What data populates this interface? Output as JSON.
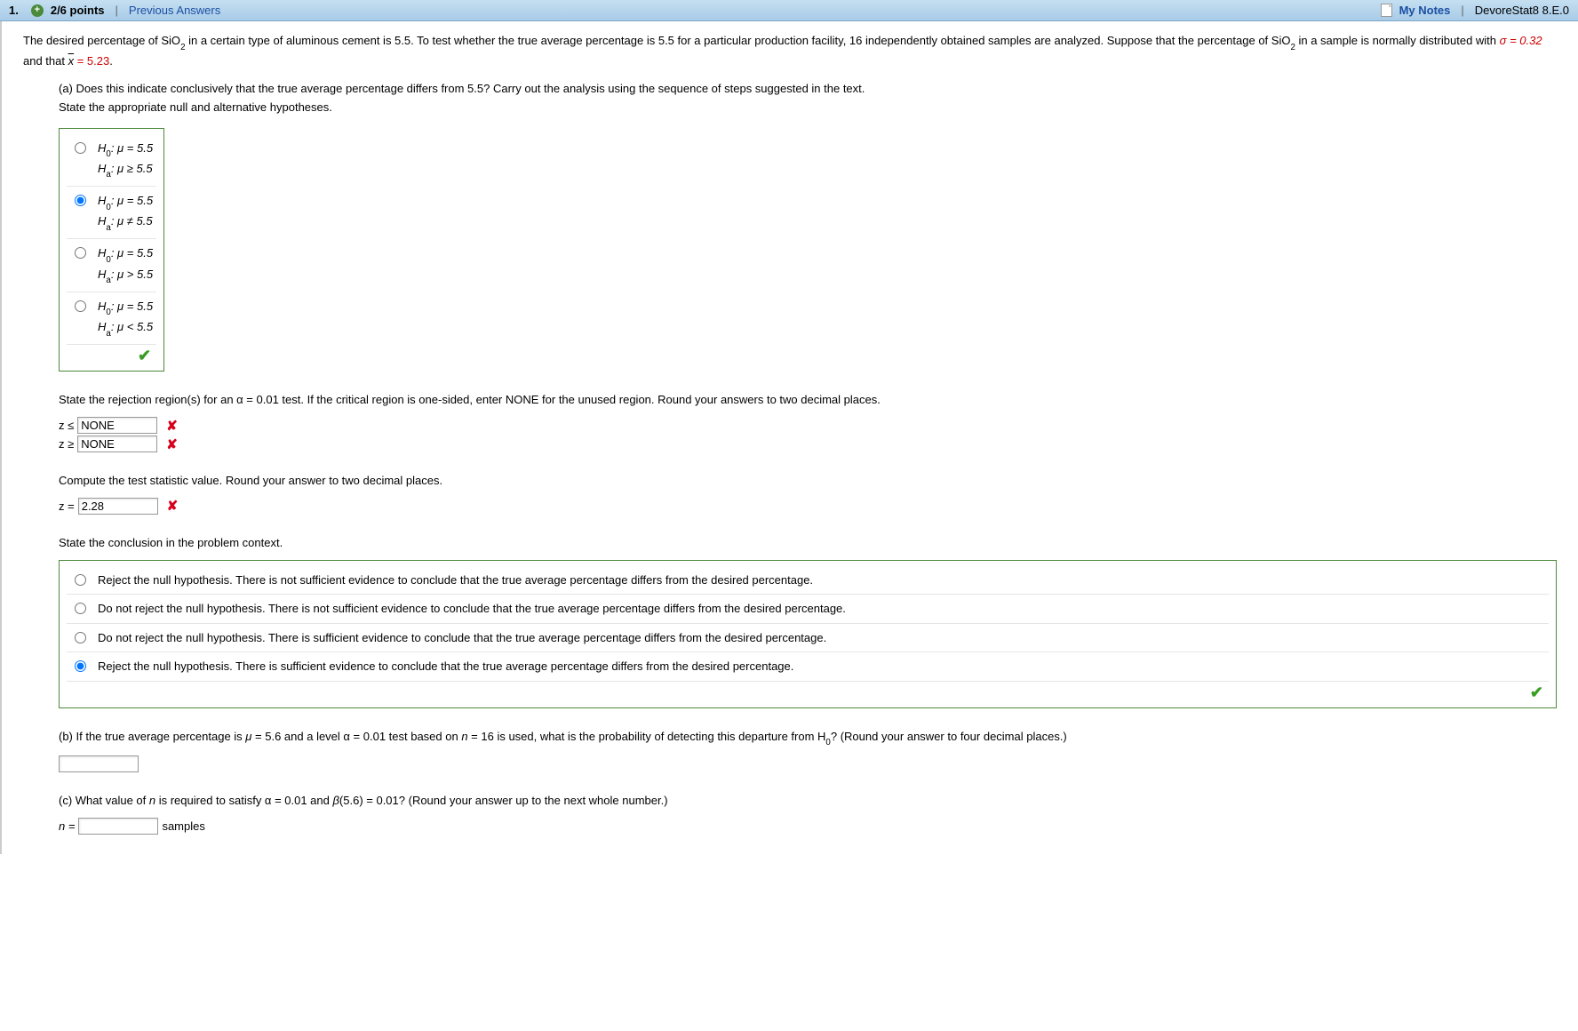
{
  "header": {
    "number": "1.",
    "points": "2/6 points",
    "prev_link": "Previous Answers",
    "mynotes": "My Notes",
    "ref": "DevoreStat8 8.E.0"
  },
  "problem": {
    "intro_1": "The desired percentage of SiO",
    "intro_2": " in a certain type of aluminous cement is 5.5. To test whether the true average percentage is 5.5 for a particular production facility, 16 independently obtained samples are analyzed. Suppose that the percentage of SiO",
    "intro_3": " in a sample is normally distributed with ",
    "sigma_eq": "σ = 0.32",
    "and_that": " and that ",
    "xbar_eq": " = 5.23",
    "period": ".",
    "sub2": "2",
    "xbar": "x"
  },
  "part_a": {
    "q": "(a) Does this indicate conclusively that the true average percentage differs from 5.5? Carry out the analysis using the sequence of steps suggested in the text.",
    "state": "State the appropriate null and alternative hypotheses.",
    "opts": [
      {
        "h0": "H",
        "h0sub": "0",
        "h0rest": ": μ = 5.5",
        "ha": "H",
        "hasub": "a",
        "harest": ": μ ≥ 5.5"
      },
      {
        "h0": "H",
        "h0sub": "0",
        "h0rest": ": μ = 5.5",
        "ha": "H",
        "hasub": "a",
        "harest": ": μ ≠ 5.5"
      },
      {
        "h0": "H",
        "h0sub": "0",
        "h0rest": ": μ = 5.5",
        "ha": "H",
        "hasub": "a",
        "harest": ": μ > 5.5"
      },
      {
        "h0": "H",
        "h0sub": "0",
        "h0rest": ": μ = 5.5",
        "ha": "H",
        "hasub": "a",
        "harest": ": μ < 5.5"
      }
    ],
    "selected_hyp": 1
  },
  "rejection": {
    "prompt": "State the rejection region(s) for an α = 0.01 test. If the critical region is one-sided, enter NONE for the unused region. Round your answers to two decimal places.",
    "z_le": "z ≤",
    "z_ge": "z ≥",
    "val1": "NONE",
    "val2": "NONE"
  },
  "teststat": {
    "prompt": "Compute the test statistic value. Round your answer to two decimal places.",
    "label": "z =",
    "val": "2.28"
  },
  "conclusion": {
    "prompt": "State the conclusion in the problem context.",
    "opts": [
      "Reject the null hypothesis. There is not sufficient evidence to conclude that the true average percentage differs from the desired percentage.",
      "Do not reject the null hypothesis. There is not sufficient evidence to conclude that the true average percentage differs from the desired percentage.",
      "Do not reject the null hypothesis. There is sufficient evidence to conclude that the true average percentage differs from the desired percentage.",
      "Reject the null hypothesis. There is sufficient evidence to conclude that the true average percentage differs from the desired percentage."
    ],
    "selected": 3
  },
  "part_b": {
    "q_1": "(b) If the true average percentage is ",
    "mu": "μ",
    "q_2": " = 5.6 and a level α = 0.01 test based on ",
    "n": "n",
    "q_3": " = 16 is used, what is the probability of detecting this departure from H",
    "sub0": "0",
    "q_4": "? (Round your answer to four decimal places.)"
  },
  "part_c": {
    "q_1": "(c) What value of ",
    "n": "n",
    "q_2": " is required to satisfy α = 0.01 and ",
    "beta": "β",
    "q_3": "(5.6) = 0.01? (Round your answer up to the next whole number.)",
    "label": "n =",
    "unit": "samples"
  }
}
